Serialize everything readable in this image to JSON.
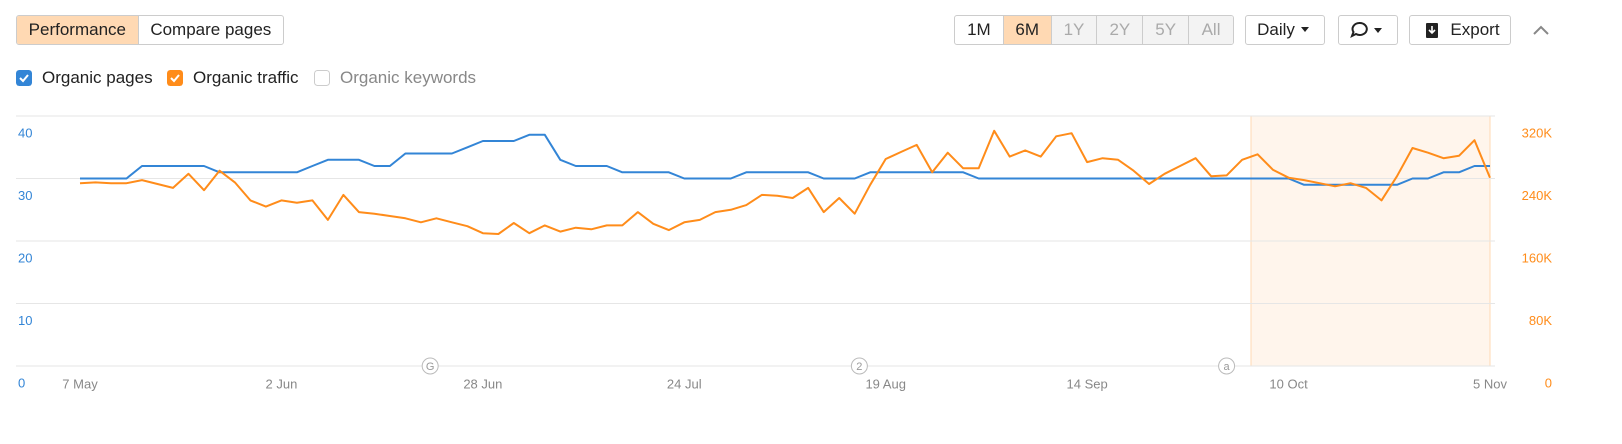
{
  "toolbar": {
    "tabs": [
      "Performance",
      "Compare pages"
    ],
    "ranges": [
      "1M",
      "6M",
      "1Y",
      "2Y",
      "5Y",
      "All"
    ],
    "interval": "Daily",
    "export": "Export",
    "unchecked_legend": "Organic keywords"
  },
  "chart_data": {
    "type": "line",
    "categories": [
      "7 May",
      null,
      null,
      null,
      null,
      null,
      null,
      null,
      null,
      null,
      null,
      null,
      null,
      "2 Jun",
      null,
      null,
      null,
      null,
      null,
      null,
      null,
      null,
      null,
      null,
      null,
      null,
      "28 Jun",
      null,
      null,
      null,
      null,
      null,
      null,
      null,
      null,
      null,
      null,
      null,
      null,
      "24 Jul",
      null,
      null,
      null,
      null,
      null,
      null,
      null,
      null,
      null,
      null,
      null,
      null,
      "19 Aug",
      null,
      null,
      null,
      null,
      null,
      null,
      null,
      null,
      null,
      null,
      null,
      null,
      "14 Sep",
      null,
      null,
      null,
      null,
      null,
      null,
      null,
      null,
      null,
      null,
      null,
      null,
      "10 Oct",
      null,
      null,
      null,
      null,
      null,
      null,
      null,
      null,
      null,
      null,
      null,
      null,
      "5 Nov"
    ],
    "series": [
      {
        "name": "Organic pages",
        "color": "#3385d6",
        "values": [
          30,
          30,
          30,
          30,
          32,
          32,
          32,
          32,
          32,
          31,
          31,
          31,
          31,
          31,
          31,
          32,
          33,
          33,
          33,
          32,
          32,
          34,
          34,
          34,
          34,
          35,
          36,
          36,
          36,
          37,
          37,
          33,
          32,
          32,
          32,
          31,
          31,
          31,
          31,
          30,
          30,
          30,
          30,
          31,
          31,
          31,
          31,
          31,
          30,
          30,
          30,
          31,
          31,
          31,
          31,
          31,
          31,
          31,
          30,
          30,
          30,
          30,
          30,
          30,
          30,
          30,
          30,
          30,
          30,
          30,
          30,
          30,
          30,
          30,
          30,
          30,
          30,
          30,
          30,
          29,
          29,
          29,
          29,
          29,
          29,
          29,
          30,
          30,
          31,
          31,
          32,
          32
        ]
      },
      {
        "name": "Organic traffic",
        "color": "#ff8c1a",
        "axis": "y2",
        "values": [
          234000,
          235000,
          234000,
          234000,
          238000,
          233000,
          228000,
          246000,
          225000,
          250000,
          235000,
          212000,
          204000,
          212000,
          209000,
          212000,
          187000,
          219000,
          197000,
          195000,
          192000,
          189000,
          184000,
          189000,
          184000,
          179000,
          170000,
          169000,
          183000,
          170000,
          180000,
          172000,
          177000,
          175000,
          180000,
          180000,
          197000,
          182000,
          174000,
          184000,
          187000,
          197000,
          200000,
          206000,
          219000,
          218000,
          215000,
          228000,
          197000,
          215000,
          195000,
          232000,
          265000,
          274000,
          283000,
          248000,
          273000,
          253000,
          253000,
          301000,
          268000,
          276000,
          268000,
          294000,
          298000,
          261000,
          266000,
          264000,
          250000,
          233000,
          246000,
          256000,
          266000,
          243000,
          244000,
          264000,
          271000,
          251000,
          241000,
          238000,
          234000,
          230000,
          234000,
          228000,
          212000,
          243000,
          279000,
          273000,
          266000,
          269000,
          289000,
          241000
        ]
      }
    ],
    "ylim": [
      0,
      40
    ],
    "yticks": [
      0,
      10,
      20,
      30,
      40
    ],
    "y2lim": [
      0,
      320000
    ],
    "y2ticks": [
      0,
      {
        "value": 80000,
        "label": "80K"
      },
      {
        "value": 160000,
        "label": "160K"
      },
      {
        "value": 240000,
        "label": "240K"
      },
      {
        "value": 320000,
        "label": "320K"
      }
    ],
    "grid": true,
    "annotations": [
      "G",
      "2",
      "a"
    ]
  }
}
